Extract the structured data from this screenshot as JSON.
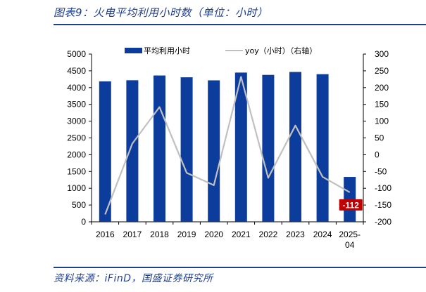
{
  "header": {
    "title": "图表9：火电平均利用小时数（单位：小时）"
  },
  "footer": {
    "source": "资料来源：iFinD，国盛证券研究所"
  },
  "colors": {
    "bar": "#0c3c9c",
    "line": "#c0c0c0",
    "rule": "#1f3f8f",
    "callout_bg": "#c00000"
  },
  "chart_data": {
    "type": "bar",
    "categories": [
      "2016",
      "2017",
      "2018",
      "2019",
      "2020",
      "2021",
      "2022",
      "2023",
      "2024",
      "2025-04"
    ],
    "category_lines": [
      [
        "2016"
      ],
      [
        "2017"
      ],
      [
        "2018"
      ],
      [
        "2019"
      ],
      [
        "2020"
      ],
      [
        "2021"
      ],
      [
        "2022"
      ],
      [
        "2023"
      ],
      [
        "2024"
      ],
      [
        "2025-",
        "04"
      ]
    ],
    "series": [
      {
        "name": "平均利用小时",
        "type": "bar",
        "axis": "left",
        "values": [
          4186,
          4219,
          4361,
          4307,
          4216,
          4448,
          4379,
          4466,
          4400,
          1338
        ]
      },
      {
        "name": "yoy（小时）（右轴）",
        "type": "line",
        "axis": "right",
        "values": [
          -178,
          33,
          142,
          -54,
          -91,
          232,
          -69,
          87,
          -66,
          -112
        ]
      }
    ],
    "left_axis": {
      "min": 0,
      "max": 5000,
      "step": 500,
      "ticks": [
        "0",
        "500",
        "1000",
        "1500",
        "2000",
        "2500",
        "3000",
        "3500",
        "4000",
        "4500",
        "5000"
      ]
    },
    "right_axis": {
      "min": -200,
      "max": 300,
      "step": 50,
      "ticks": [
        "-200",
        "-150",
        "-100",
        "-50",
        "0",
        "50",
        "100",
        "150",
        "200",
        "250",
        "300"
      ]
    },
    "legend": {
      "position": "top",
      "items": [
        "平均利用小时",
        "yoy（小时）（右轴）"
      ]
    },
    "annotation": {
      "label": "-112",
      "category": "2025-04",
      "value": -112
    },
    "grid": false
  }
}
